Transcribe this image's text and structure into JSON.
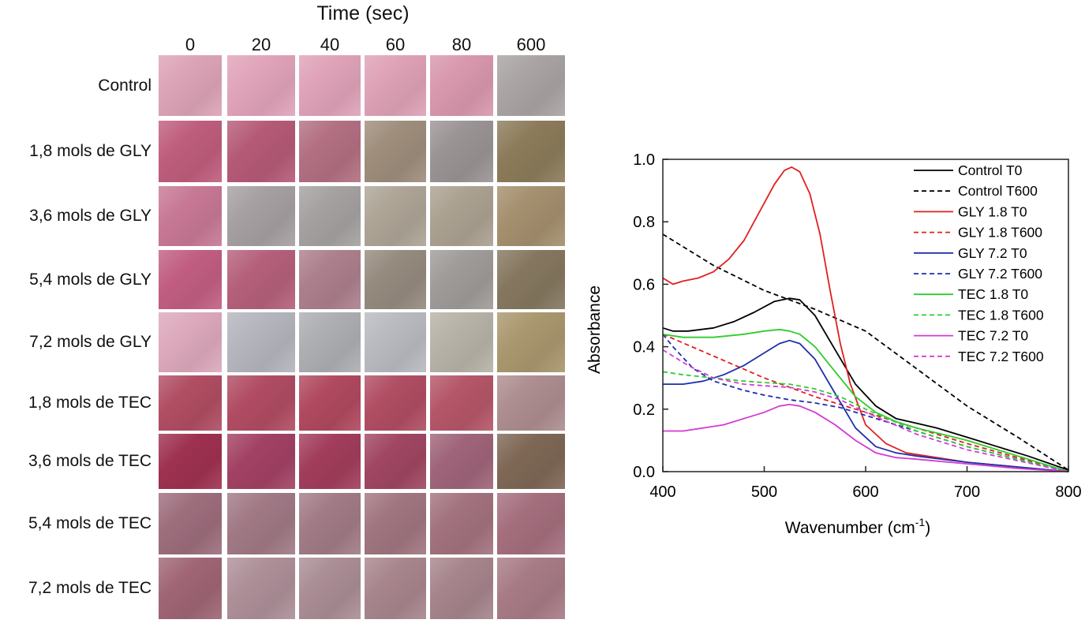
{
  "grid": {
    "title": "Time (sec)",
    "columns": [
      "0",
      "20",
      "40",
      "60",
      "80",
      "600"
    ],
    "rows": [
      {
        "label": "Control",
        "colors": [
          "#dca3b7",
          "#e0a3b9",
          "#dfa2b8",
          "#dea1b6",
          "#d897ad",
          "#a9a3a3"
        ]
      },
      {
        "label": "1,8 mols de GLY",
        "colors": [
          "#bf5d7d",
          "#b55a76",
          "#b26f82",
          "#9e8d7b",
          "#9a9394",
          "#8b7b5a"
        ]
      },
      {
        "label": "3,6 mols de GLY",
        "colors": [
          "#c77894",
          "#a59fa1",
          "#a4a1a0",
          "#ada496",
          "#aba191",
          "#a48f6e"
        ]
      },
      {
        "label": "5,4 mols de GLY",
        "colors": [
          "#c15e82",
          "#b5607b",
          "#ac7f8c",
          "#958a7e",
          "#9e9b98",
          "#85775f"
        ]
      },
      {
        "label": "7,2 mols de GLY",
        "colors": [
          "#dca8bc",
          "#b4b5bd",
          "#acaeb2",
          "#b8bac0",
          "#b7b2a7",
          "#a9976e"
        ]
      },
      {
        "label": "1,8 mols de TEC",
        "colors": [
          "#b04d63",
          "#b04c63",
          "#b0495f",
          "#b04d63",
          "#b45668",
          "#ad8d8f"
        ]
      },
      {
        "label": "3,6 mols de TEC",
        "colors": [
          "#9e3150",
          "#a24163",
          "#a23d5c",
          "#a04662",
          "#9f6479",
          "#7e6755"
        ]
      },
      {
        "label": "5,4 mols de TEC",
        "colors": [
          "#9d6d7c",
          "#a07985",
          "#a17b86",
          "#a07580",
          "#a2727e",
          "#a46e7d"
        ]
      },
      {
        "label": "7,2 mols de TEC",
        "colors": [
          "#9f6574",
          "#ad8f98",
          "#aa8d95",
          "#a8858d",
          "#a6848c",
          "#a77b86"
        ]
      }
    ]
  },
  "chart_data": {
    "type": "line",
    "xlabel": "Wavenumber (cm",
    "xlabel_sup": "-1",
    "xlabel_end": ")",
    "ylabel": "Absorbance",
    "xlim": [
      400,
      800
    ],
    "ylim": [
      0,
      1.0
    ],
    "xticks": [
      400,
      500,
      600,
      700,
      800
    ],
    "yticks": [
      0.0,
      0.2,
      0.4,
      0.6,
      0.8,
      1.0
    ],
    "ytick_labels": [
      "0.0",
      "0.2",
      "0.4",
      "0.6",
      "0.8",
      "1.0"
    ],
    "legend_position": "top-right",
    "series": [
      {
        "name": "Control T0",
        "color": "#000000",
        "dashed": false,
        "x": [
          400,
          410,
          425,
          450,
          470,
          490,
          510,
          525,
          535,
          550,
          570,
          590,
          610,
          630,
          650,
          670,
          700,
          730,
          760,
          800
        ],
        "y": [
          0.46,
          0.45,
          0.45,
          0.46,
          0.48,
          0.51,
          0.545,
          0.555,
          0.55,
          0.5,
          0.39,
          0.28,
          0.21,
          0.17,
          0.155,
          0.14,
          0.11,
          0.08,
          0.05,
          0.005
        ]
      },
      {
        "name": "Control T600",
        "color": "#000000",
        "dashed": true,
        "x": [
          400,
          450,
          500,
          550,
          600,
          650,
          700,
          750,
          800
        ],
        "y": [
          0.76,
          0.66,
          0.58,
          0.52,
          0.45,
          0.33,
          0.21,
          0.11,
          0.005
        ]
      },
      {
        "name": "GLY 1.8 T0",
        "color": "#e0201e",
        "dashed": false,
        "x": [
          400,
          410,
          420,
          435,
          450,
          465,
          480,
          495,
          510,
          520,
          527,
          535,
          545,
          555,
          565,
          575,
          585,
          600,
          620,
          640,
          660,
          700,
          750,
          800
        ],
        "y": [
          0.62,
          0.6,
          0.61,
          0.62,
          0.64,
          0.68,
          0.74,
          0.83,
          0.92,
          0.965,
          0.975,
          0.96,
          0.89,
          0.76,
          0.58,
          0.41,
          0.28,
          0.15,
          0.09,
          0.06,
          0.05,
          0.03,
          0.015,
          0.0
        ]
      },
      {
        "name": "GLY 1.8 T600",
        "color": "#e0201e",
        "dashed": true,
        "x": [
          400,
          450,
          500,
          550,
          600,
          650,
          700,
          750,
          800
        ],
        "y": [
          0.44,
          0.37,
          0.3,
          0.24,
          0.19,
          0.14,
          0.09,
          0.045,
          0.0
        ]
      },
      {
        "name": "GLY 7.2 T0",
        "color": "#1f2faa",
        "dashed": false,
        "x": [
          400,
          420,
          440,
          460,
          480,
          500,
          515,
          525,
          535,
          550,
          570,
          590,
          610,
          630,
          650,
          700,
          750,
          800
        ],
        "y": [
          0.28,
          0.28,
          0.29,
          0.31,
          0.34,
          0.38,
          0.41,
          0.42,
          0.41,
          0.36,
          0.25,
          0.14,
          0.08,
          0.06,
          0.05,
          0.03,
          0.015,
          0.0
        ]
      },
      {
        "name": "GLY 7.2 T600",
        "color": "#1f2faa",
        "dashed": true,
        "x": [
          400,
          410,
          430,
          450,
          480,
          500,
          525,
          550,
          575,
          600,
          650,
          700,
          750,
          800
        ],
        "y": [
          0.44,
          0.4,
          0.33,
          0.29,
          0.26,
          0.245,
          0.23,
          0.22,
          0.205,
          0.18,
          0.13,
          0.08,
          0.04,
          0.0
        ]
      },
      {
        "name": "TEC 1.8 T0",
        "color": "#2ecc2e",
        "dashed": false,
        "x": [
          400,
          420,
          450,
          480,
          500,
          515,
          525,
          535,
          550,
          570,
          590,
          610,
          630,
          650,
          700,
          750,
          800
        ],
        "y": [
          0.44,
          0.43,
          0.43,
          0.44,
          0.45,
          0.455,
          0.45,
          0.44,
          0.4,
          0.32,
          0.24,
          0.19,
          0.16,
          0.14,
          0.1,
          0.05,
          0.0
        ]
      },
      {
        "name": "TEC 1.8 T600",
        "color": "#2ecc2e",
        "dashed": true,
        "x": [
          400,
          420,
          450,
          480,
          500,
          525,
          550,
          575,
          600,
          650,
          700,
          750,
          800
        ],
        "y": [
          0.32,
          0.31,
          0.3,
          0.29,
          0.285,
          0.28,
          0.265,
          0.24,
          0.2,
          0.13,
          0.08,
          0.04,
          0.0
        ]
      },
      {
        "name": "TEC 7.2 T0",
        "color": "#d43ad4",
        "dashed": false,
        "x": [
          400,
          420,
          440,
          460,
          480,
          500,
          515,
          525,
          535,
          550,
          570,
          590,
          610,
          630,
          650,
          700,
          750,
          800
        ],
        "y": [
          0.13,
          0.13,
          0.14,
          0.15,
          0.17,
          0.19,
          0.21,
          0.215,
          0.21,
          0.19,
          0.15,
          0.1,
          0.06,
          0.045,
          0.04,
          0.025,
          0.01,
          0.0
        ]
      },
      {
        "name": "TEC 7.2 T600",
        "color": "#d43ad4",
        "dashed": true,
        "x": [
          400,
          425,
          450,
          480,
          500,
          525,
          550,
          575,
          600,
          650,
          700,
          750,
          800
        ],
        "y": [
          0.39,
          0.34,
          0.3,
          0.28,
          0.275,
          0.27,
          0.255,
          0.23,
          0.19,
          0.12,
          0.07,
          0.035,
          0.0
        ]
      }
    ]
  }
}
